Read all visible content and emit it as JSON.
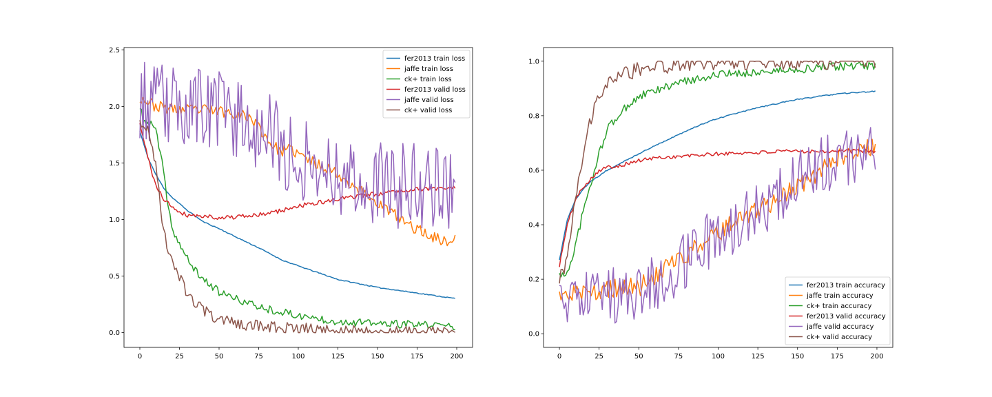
{
  "chart_data": [
    {
      "type": "line",
      "title": "",
      "xlabel": "",
      "ylabel": "",
      "xlim": [
        -10,
        210
      ],
      "ylim": [
        -0.13,
        2.52
      ],
      "xticks": [
        0,
        25,
        50,
        75,
        100,
        125,
        150,
        175,
        200
      ],
      "yticks": [
        0.0,
        0.5,
        1.0,
        1.5,
        2.0,
        2.5
      ],
      "ytick_labels": [
        "0.0",
        "0.5",
        "1.0",
        "1.5",
        "2.0",
        "2.5"
      ],
      "legend_position": "top-right",
      "series": [
        {
          "name": "fer2013 train loss",
          "color": "#1f77b4",
          "x": [
            0,
            5,
            10,
            15,
            20,
            25,
            30,
            40,
            50,
            60,
            75,
            90,
            100,
            125,
            150,
            175,
            200
          ],
          "y": [
            1.78,
            1.55,
            1.4,
            1.28,
            1.2,
            1.14,
            1.08,
            0.98,
            0.92,
            0.85,
            0.75,
            0.64,
            0.59,
            0.47,
            0.4,
            0.35,
            0.3
          ],
          "noise": 0.004,
          "seed": 11
        },
        {
          "name": "jaffe train loss",
          "color": "#ff7f0e",
          "x": [
            0,
            10,
            25,
            40,
            50,
            60,
            70,
            75,
            80,
            85,
            90,
            95,
            100,
            110,
            120,
            130,
            140,
            150,
            160,
            170,
            180,
            190,
            195,
            200
          ],
          "y": [
            2.08,
            2.0,
            1.97,
            1.97,
            1.96,
            1.94,
            1.9,
            1.82,
            1.72,
            1.64,
            1.6,
            1.62,
            1.58,
            1.5,
            1.45,
            1.35,
            1.25,
            1.15,
            1.05,
            0.95,
            0.88,
            0.82,
            0.8,
            0.84
          ],
          "noise": 0.05,
          "seed": 23
        },
        {
          "name": "ck+ train loss",
          "color": "#2ca02c",
          "x": [
            0,
            3,
            6,
            10,
            14,
            18,
            21,
            25,
            30,
            35,
            40,
            45,
            50,
            60,
            75,
            90,
            100,
            125,
            150,
            175,
            200
          ],
          "y": [
            1.98,
            1.86,
            1.85,
            1.8,
            1.5,
            1.1,
            0.9,
            0.78,
            0.65,
            0.55,
            0.47,
            0.42,
            0.36,
            0.3,
            0.23,
            0.18,
            0.15,
            0.1,
            0.08,
            0.07,
            0.06
          ],
          "noise": 0.035,
          "seed": 37
        },
        {
          "name": "fer2013 valid loss",
          "color": "#d62728",
          "x": [
            0,
            5,
            10,
            15,
            20,
            25,
            30,
            40,
            50,
            60,
            75,
            90,
            100,
            110,
            125,
            150,
            175,
            200
          ],
          "y": [
            1.84,
            1.55,
            1.3,
            1.18,
            1.12,
            1.07,
            1.04,
            1.03,
            1.02,
            1.02,
            1.04,
            1.08,
            1.12,
            1.14,
            1.18,
            1.23,
            1.27,
            1.28
          ],
          "noise": 0.02,
          "seed": 41
        },
        {
          "name": "jaffe valid loss",
          "color": "#9467bd",
          "x": [
            0,
            10,
            25,
            40,
            50,
            60,
            70,
            80,
            90,
            100,
            110,
            120,
            130,
            140,
            150,
            160,
            170,
            180,
            190,
            200
          ],
          "y": [
            2.05,
            2.0,
            2.0,
            1.98,
            1.96,
            1.92,
            1.86,
            1.75,
            1.62,
            1.55,
            1.5,
            1.45,
            1.4,
            1.35,
            1.3,
            1.3,
            1.3,
            1.3,
            1.3,
            1.3
          ],
          "noise": 0.38,
          "seed": 53
        },
        {
          "name": "ck+ valid loss",
          "color": "#8c564b",
          "x": [
            0,
            5,
            10,
            14,
            18,
            22,
            25,
            30,
            35,
            40,
            45,
            50,
            60,
            75,
            100,
            125,
            150,
            175,
            200
          ],
          "y": [
            1.83,
            1.8,
            1.5,
            1.0,
            0.72,
            0.6,
            0.5,
            0.35,
            0.25,
            0.2,
            0.15,
            0.12,
            0.08,
            0.06,
            0.04,
            0.02,
            0.01,
            0.005,
            0.0
          ],
          "noise": 0.05,
          "seed": 67
        }
      ]
    },
    {
      "type": "line",
      "title": "",
      "xlabel": "",
      "ylabel": "",
      "xlim": [
        -10,
        210
      ],
      "ylim": [
        -0.05,
        1.05
      ],
      "xticks": [
        0,
        25,
        50,
        75,
        100,
        125,
        150,
        175,
        200
      ],
      "yticks": [
        0.0,
        0.2,
        0.4,
        0.6,
        0.8,
        1.0
      ],
      "ytick_labels": [
        "0.0",
        "0.2",
        "0.4",
        "0.6",
        "0.8",
        "1.0"
      ],
      "legend_position": "bottom-right",
      "series": [
        {
          "name": "fer2013 train accuracy",
          "color": "#1f77b4",
          "x": [
            0,
            5,
            10,
            15,
            20,
            25,
            30,
            40,
            50,
            60,
            75,
            90,
            100,
            125,
            150,
            175,
            200
          ],
          "y": [
            0.27,
            0.42,
            0.49,
            0.53,
            0.56,
            0.58,
            0.6,
            0.63,
            0.66,
            0.69,
            0.73,
            0.77,
            0.79,
            0.83,
            0.86,
            0.88,
            0.89
          ],
          "noise": 0.002,
          "seed": 71
        },
        {
          "name": "jaffe train accuracy",
          "color": "#ff7f0e",
          "x": [
            0,
            10,
            20,
            25,
            30,
            40,
            50,
            60,
            70,
            80,
            90,
            100,
            110,
            120,
            130,
            140,
            150,
            160,
            170,
            180,
            190,
            200
          ],
          "y": [
            0.14,
            0.15,
            0.16,
            0.15,
            0.16,
            0.17,
            0.17,
            0.21,
            0.25,
            0.29,
            0.33,
            0.37,
            0.41,
            0.44,
            0.47,
            0.5,
            0.54,
            0.58,
            0.63,
            0.66,
            0.68,
            0.68
          ],
          "noise": 0.035,
          "seed": 83
        },
        {
          "name": "ck+ train accuracy",
          "color": "#2ca02c",
          "x": [
            0,
            3,
            6,
            10,
            15,
            20,
            25,
            30,
            40,
            50,
            60,
            75,
            90,
            100,
            125,
            150,
            175,
            200
          ],
          "y": [
            0.22,
            0.21,
            0.24,
            0.32,
            0.45,
            0.55,
            0.66,
            0.75,
            0.82,
            0.87,
            0.89,
            0.92,
            0.94,
            0.95,
            0.96,
            0.97,
            0.98,
            0.985
          ],
          "noise": 0.015,
          "seed": 97
        },
        {
          "name": "fer2013 valid accuracy",
          "color": "#d62728",
          "x": [
            0,
            5,
            10,
            15,
            20,
            25,
            30,
            40,
            50,
            60,
            75,
            100,
            125,
            150,
            175,
            200
          ],
          "y": [
            0.25,
            0.4,
            0.49,
            0.54,
            0.57,
            0.6,
            0.61,
            0.62,
            0.635,
            0.645,
            0.65,
            0.66,
            0.665,
            0.67,
            0.67,
            0.67
          ],
          "noise": 0.007,
          "seed": 101
        },
        {
          "name": "jaffe valid accuracy",
          "color": "#9467bd",
          "x": [
            0,
            10,
            20,
            30,
            40,
            50,
            60,
            70,
            80,
            90,
            100,
            110,
            120,
            130,
            140,
            150,
            160,
            170,
            180,
            190,
            200
          ],
          "y": [
            0.13,
            0.12,
            0.12,
            0.13,
            0.14,
            0.16,
            0.19,
            0.22,
            0.28,
            0.32,
            0.36,
            0.39,
            0.43,
            0.47,
            0.52,
            0.56,
            0.6,
            0.63,
            0.64,
            0.65,
            0.66
          ],
          "noise": 0.11,
          "seed": 113
        },
        {
          "name": "ck+ valid accuracy",
          "color": "#8c564b",
          "x": [
            0,
            3,
            6,
            10,
            14,
            18,
            22,
            25,
            30,
            35,
            40,
            50,
            60,
            75,
            100,
            125,
            150,
            175,
            200
          ],
          "y": [
            0.2,
            0.22,
            0.32,
            0.48,
            0.62,
            0.75,
            0.83,
            0.87,
            0.91,
            0.94,
            0.95,
            0.97,
            0.98,
            0.99,
            0.995,
            1.0,
            1.0,
            1.0,
            1.0
          ],
          "noise": 0.03,
          "seed": 127
        }
      ]
    }
  ]
}
